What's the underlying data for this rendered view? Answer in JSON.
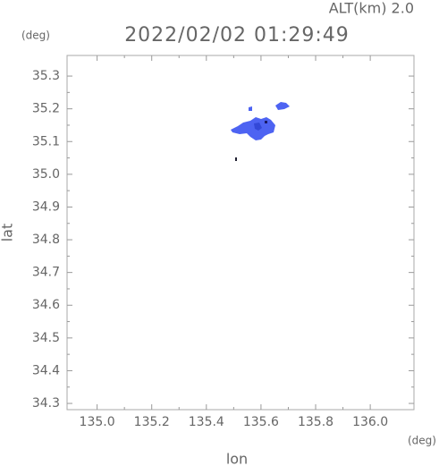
{
  "chart_data": {
    "type": "echo-map",
    "subtitle": "ALT(km) 2.0",
    "title": "2022/02/02 01:29:49",
    "y_unit": "(deg)",
    "x_unit": "(deg)",
    "xlabel": "lon",
    "ylabel": "lat",
    "xlim": [
      134.89,
      136.16
    ],
    "ylim": [
      34.281,
      35.363
    ],
    "xticks": [
      {
        "value": 135,
        "label": "135.0"
      },
      135.2,
      135.4,
      135.6,
      135.8,
      {
        "value": 136,
        "label": "136.0"
      }
    ],
    "yticks": [
      34.3,
      34.4,
      34.5,
      34.6,
      34.7,
      34.8,
      34.9,
      {
        "value": 35,
        "label": "35.0"
      },
      35.1,
      35.2,
      35.3
    ],
    "color": "#4d63f2"
  }
}
